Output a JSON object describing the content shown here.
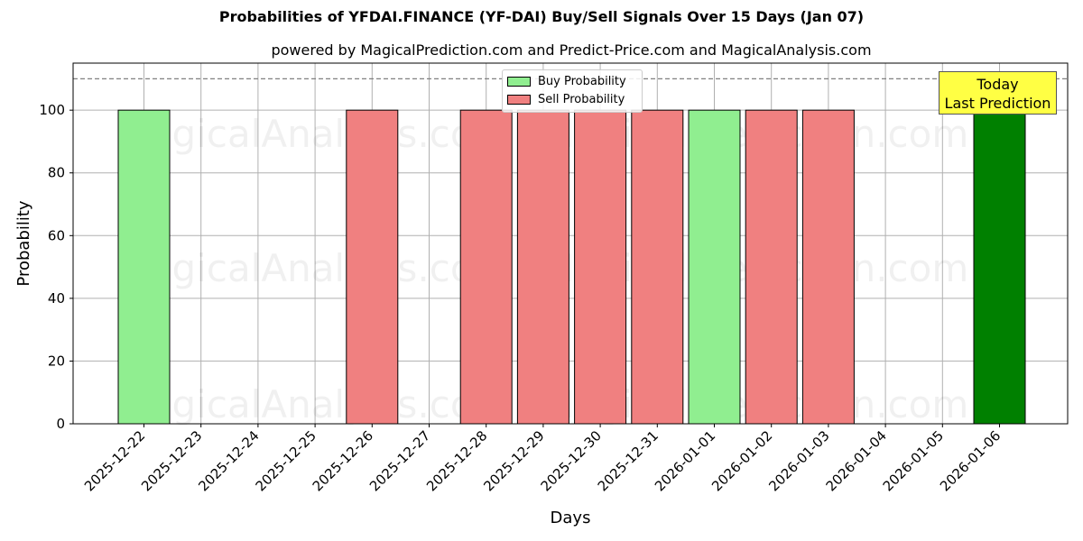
{
  "chart_data": {
    "type": "bar",
    "title": "Probabilities of YFDAI.FINANCE (YF-DAI) Buy/Sell Signals Over 15 Days (Jan 07)",
    "subtitle": "powered by MagicalPrediction.com and Predict-Price.com and MagicalAnalysis.com",
    "xlabel": "Days",
    "ylabel": "Probability",
    "ylim": [
      0,
      115
    ],
    "yticks": [
      0,
      20,
      40,
      60,
      80,
      100
    ],
    "reference_line": 110,
    "grid": true,
    "legend_position": "top-center",
    "categories": [
      "2025-12-22",
      "2025-12-23",
      "2025-12-24",
      "2025-12-25",
      "2025-12-26",
      "2025-12-27",
      "2025-12-28",
      "2025-12-29",
      "2025-12-30",
      "2025-12-31",
      "2026-01-01",
      "2026-01-02",
      "2026-01-03",
      "2026-01-04",
      "2026-01-05",
      "2026-01-06"
    ],
    "series": [
      {
        "name": "Buy Probability",
        "color": "#90ee90",
        "values": [
          100,
          null,
          null,
          null,
          null,
          null,
          null,
          null,
          null,
          null,
          100,
          null,
          null,
          null,
          null,
          null
        ]
      },
      {
        "name": "Sell Probability",
        "color": "#f08080",
        "values": [
          null,
          null,
          null,
          null,
          100,
          null,
          100,
          100,
          100,
          100,
          null,
          100,
          100,
          null,
          null,
          null
        ]
      }
    ],
    "last_prediction": {
      "category": "2026-01-06",
      "value": 100,
      "color": "#008000"
    },
    "annotation": {
      "line1": "Today",
      "line2": "Last Prediction",
      "color": "#ffff44"
    },
    "watermarks": [
      "MagicalAnalysis.com",
      "MagicalPrediction.com"
    ]
  }
}
